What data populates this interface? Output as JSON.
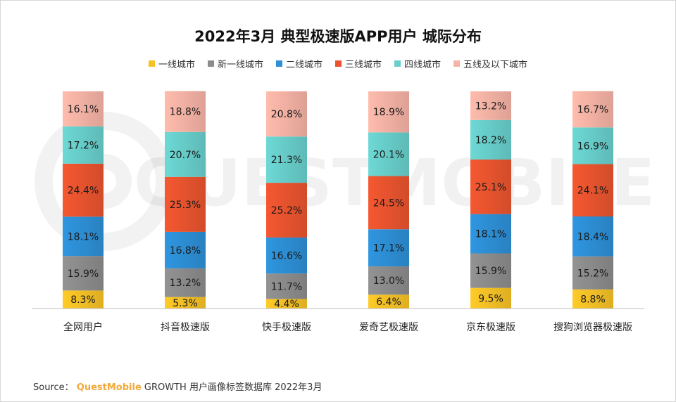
{
  "chart_data": {
    "type": "bar",
    "stacked": true,
    "title": "2022年3月 典型极速版APP用户 城际分布",
    "categories": [
      "全网用户",
      "抖音极速版",
      "快手极速版",
      "爱奇艺极速版",
      "京东极速版",
      "搜狗浏览器极速版"
    ],
    "series": [
      {
        "name": "一线城市",
        "color": "#f7c126",
        "values": [
          8.3,
          5.3,
          4.4,
          6.4,
          9.5,
          8.8
        ]
      },
      {
        "name": "新一线城市",
        "color": "#8c8c8c",
        "values": [
          15.9,
          13.2,
          11.7,
          13.0,
          15.9,
          15.2
        ]
      },
      {
        "name": "二线城市",
        "color": "#2d8fd5",
        "values": [
          18.1,
          16.8,
          16.6,
          17.1,
          18.1,
          18.4
        ]
      },
      {
        "name": "三线城市",
        "color": "#e9542f",
        "values": [
          24.4,
          25.3,
          25.2,
          24.5,
          25.1,
          24.1
        ]
      },
      {
        "name": "四线城市",
        "color": "#68cfcb",
        "values": [
          17.2,
          20.7,
          21.3,
          20.1,
          18.2,
          16.9
        ]
      },
      {
        "name": "五线及以下城市",
        "color": "#f7b3a5",
        "values": [
          16.1,
          18.8,
          20.8,
          18.9,
          13.2,
          16.7
        ]
      }
    ],
    "ylim": [
      0,
      100
    ],
    "unit": "%",
    "legend_position": "top"
  },
  "watermark": "QUESTMOBILE",
  "source": {
    "prefix": "Source：",
    "brand": "QuestMobile",
    "text": "GROWTH 用户画像标签数据库 2022年3月"
  }
}
